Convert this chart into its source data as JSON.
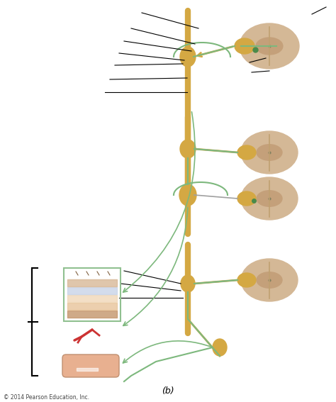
{
  "background_color": "#ffffff",
  "title_b": "(b)",
  "copyright": "© 2014 Pearson Education, Inc.",
  "spine_color": "#D4A843",
  "cross_section_outer": "#D4B896",
  "cross_section_inner": "#C4A07A",
  "nerve_yellow": "#D4A843",
  "nerve_green": "#7DB87D",
  "nerve_gray": "#A0A0A0",
  "line_color": "#000000",
  "ganglion_color": "#D4A843",
  "skin_box_color": "#90C090",
  "bracket_color": "#000000"
}
